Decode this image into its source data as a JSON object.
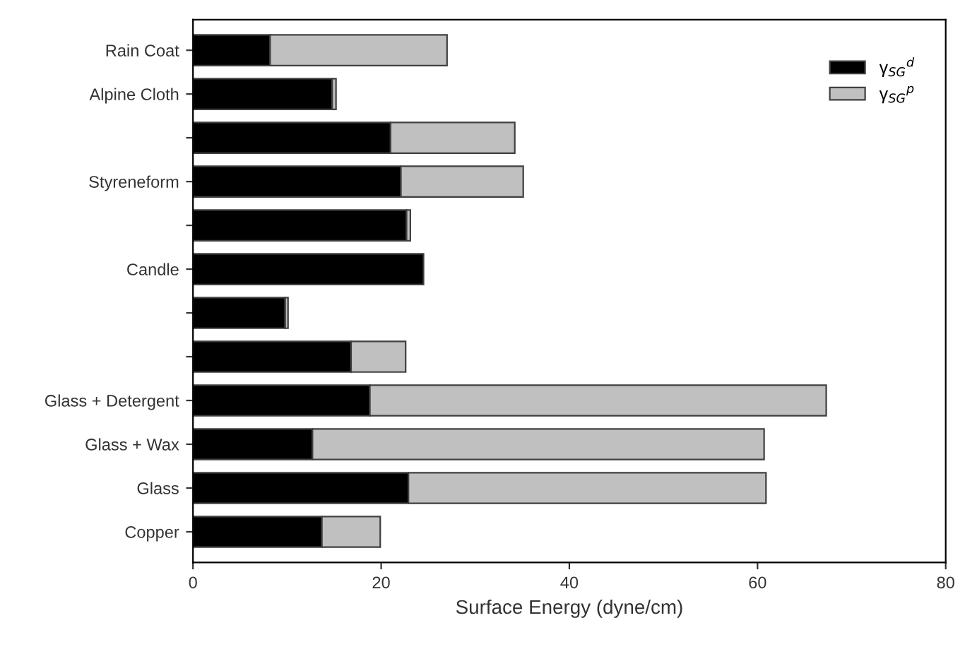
{
  "chart_data": {
    "type": "bar",
    "orientation": "horizontal",
    "stacked": true,
    "xlabel": "Surface Energy (dyne/cm)",
    "categories": [
      "Rain Coat",
      "Alpine Cloth",
      null,
      "Styreneform",
      null,
      "Candle",
      null,
      null,
      "Glass + Detergent",
      "Glass + Wax",
      "Glass",
      "Copper"
    ],
    "series": [
      {
        "name": "γ$_{SG}$$^{d}$",
        "color": "#000000",
        "values": [
          8.2,
          14.8,
          21.0,
          22.1,
          22.7,
          24.5,
          9.8,
          16.8,
          18.8,
          12.7,
          22.9,
          13.7
        ]
      },
      {
        "name": "γ$_{SG}$$^{p}$",
        "color": "#c0c0c0",
        "values": [
          18.8,
          0.4,
          13.2,
          13.0,
          0.4,
          null,
          0.3,
          5.8,
          48.5,
          48.0,
          38.0,
          6.2
        ]
      }
    ],
    "xlim": [
      0,
      80
    ],
    "xticks": [
      0,
      20,
      40,
      60,
      80
    ],
    "grid": false,
    "legend": "top right"
  }
}
